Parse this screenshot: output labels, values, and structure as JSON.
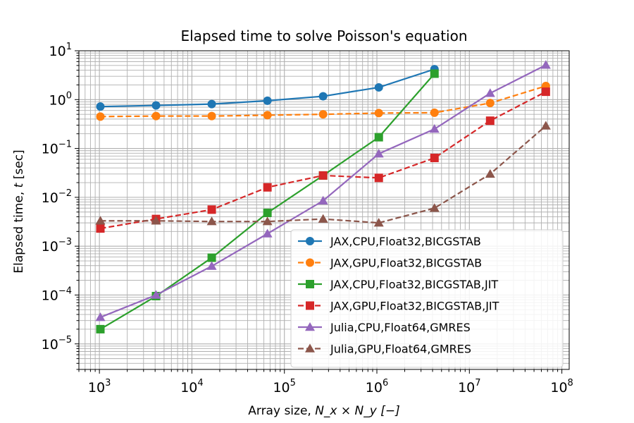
{
  "chart_data": {
    "type": "line",
    "title": "Elapsed time to solve Poisson's equation",
    "xlabel": {
      "prefix": "Array size, ",
      "math": "N_x × N_y [−]"
    },
    "ylabel": {
      "prefix": "Elapsed time, ",
      "math": "t",
      "suffix": " [sec]"
    },
    "xscale": "log",
    "yscale": "log",
    "xlim": [
      600,
      120000000
    ],
    "ylim": [
      3e-06,
      10
    ],
    "grid": true,
    "legend_position": "lower-right",
    "x_ticks": [
      {
        "value": 1000,
        "base": "10",
        "exp": "3"
      },
      {
        "value": 10000,
        "base": "10",
        "exp": "4"
      },
      {
        "value": 100000,
        "base": "10",
        "exp": "5"
      },
      {
        "value": 1000000,
        "base": "10",
        "exp": "6"
      },
      {
        "value": 10000000,
        "base": "10",
        "exp": "7"
      },
      {
        "value": 100000000,
        "base": "10",
        "exp": "8"
      }
    ],
    "y_ticks": [
      {
        "value": 1e-05,
        "base": "10",
        "exp": "−5"
      },
      {
        "value": 0.0001,
        "base": "10",
        "exp": "−4"
      },
      {
        "value": 0.001,
        "base": "10",
        "exp": "−3"
      },
      {
        "value": 0.01,
        "base": "10",
        "exp": "−2"
      },
      {
        "value": 0.1,
        "base": "10",
        "exp": "−1"
      },
      {
        "value": 1,
        "base": "10",
        "exp": "0"
      },
      {
        "value": 10,
        "base": "10",
        "exp": "1"
      }
    ],
    "series": [
      {
        "name": "JAX,CPU,Float32,BICGSTAB",
        "color": "#1f77b4",
        "dash": "solid",
        "marker": "circle",
        "x": [
          1024,
          4096,
          16384,
          65536,
          262144,
          1048576,
          4194304
        ],
        "y": [
          0.72,
          0.76,
          0.81,
          0.95,
          1.17,
          1.78,
          4.2
        ]
      },
      {
        "name": "JAX,GPU,Float32,BICGSTAB",
        "color": "#ff7f0e",
        "dash": "dashed",
        "marker": "circle",
        "x": [
          1024,
          4096,
          16384,
          65536,
          262144,
          1048576,
          4194304,
          16777216,
          67108864
        ],
        "y": [
          0.45,
          0.46,
          0.46,
          0.48,
          0.5,
          0.53,
          0.54,
          0.85,
          1.9
        ]
      },
      {
        "name": "JAX,CPU,Float32,BICGSTAB,JIT",
        "color": "#2ca02c",
        "dash": "solid",
        "marker": "square",
        "x": [
          1024,
          4096,
          16384,
          65536,
          262144,
          1048576,
          4194304
        ],
        "y": [
          2e-05,
          9.5e-05,
          0.00058,
          0.0048,
          0.028,
          0.17,
          3.4
        ]
      },
      {
        "name": "JAX,GPU,Float32,BICGSTAB,JIT",
        "color": "#d62728",
        "dash": "dashed",
        "marker": "square",
        "x": [
          1024,
          4096,
          16384,
          65536,
          262144,
          1048576,
          4194304,
          16777216,
          67108864
        ],
        "y": [
          0.0023,
          0.0036,
          0.0056,
          0.016,
          0.028,
          0.025,
          0.064,
          0.37,
          1.45
        ]
      },
      {
        "name": "Julia,CPU,Float64,GMRES",
        "color": "#9467bd",
        "dash": "solid",
        "marker": "triangle",
        "x": [
          1024,
          4096,
          16384,
          65536,
          262144,
          1048576,
          4194304,
          16777216,
          67108864
        ],
        "y": [
          3.5e-05,
          0.0001,
          0.00039,
          0.0018,
          0.0085,
          0.078,
          0.25,
          1.35,
          5.1
        ]
      },
      {
        "name": "Julia,GPU,Float64,GMRES",
        "color": "#8c564b",
        "dash": "dashed",
        "marker": "triangle",
        "x": [
          1024,
          4096,
          16384,
          65536,
          262144,
          1048576,
          4194304,
          16777216,
          67108864
        ],
        "y": [
          0.0033,
          0.0033,
          0.0032,
          0.0032,
          0.0036,
          0.003,
          0.006,
          0.03,
          0.29
        ]
      }
    ]
  }
}
